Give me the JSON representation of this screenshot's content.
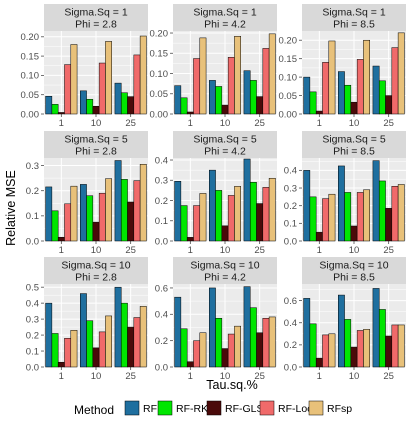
{
  "chart_data": {
    "type": "bar",
    "ylabel": "Relative MSE",
    "xlabel": "Tau.sq.%",
    "categories": [
      "1",
      "10",
      "25"
    ],
    "legend": {
      "title": "Method",
      "position": "bottom",
      "entries": [
        {
          "name": "RF",
          "color": "#1f6f9f"
        },
        {
          "name": "RF-RK",
          "color": "#00e600"
        },
        {
          "name": "RF-GLS",
          "color": "#4a0a0a"
        },
        {
          "name": "RF-Loc",
          "color": "#f06a6a"
        },
        {
          "name": "RFsp",
          "color": "#e8c17a"
        }
      ]
    },
    "grid": true,
    "panels": [
      {
        "row": 0,
        "col": 0,
        "strip1": "Sigma.Sq = 1",
        "strip2": "Phi = 2.8",
        "ylim": [
          0,
          0.215
        ],
        "yticks": [
          0.0,
          0.05,
          0.1,
          0.15,
          0.2
        ],
        "yticklabels": [
          "0.00",
          "0.05",
          "0.10",
          "0.15",
          "0.20"
        ],
        "values": [
          [
            0.046,
            0.025,
            0.004,
            0.128,
            0.18
          ],
          [
            0.06,
            0.038,
            0.02,
            0.132,
            0.188
          ],
          [
            0.08,
            0.055,
            0.045,
            0.153,
            0.202
          ]
        ]
      },
      {
        "row": 0,
        "col": 1,
        "strip1": "Sigma.Sq = 1",
        "strip2": "Phi = 4.2",
        "ylim": [
          0,
          0.205
        ],
        "yticks": [
          0.0,
          0.05,
          0.1,
          0.15,
          0.2
        ],
        "yticklabels": [
          "0.00",
          "0.05",
          "0.10",
          "0.15",
          "0.20"
        ],
        "values": [
          [
            0.07,
            0.04,
            0.005,
            0.137,
            0.188
          ],
          [
            0.083,
            0.068,
            0.022,
            0.14,
            0.192
          ],
          [
            0.107,
            0.083,
            0.043,
            0.162,
            0.198
          ]
        ]
      },
      {
        "row": 0,
        "col": 2,
        "strip1": "Sigma.Sq = 1",
        "strip2": "Phi = 8.5",
        "ylim": [
          0,
          0.225
        ],
        "yticks": [
          0.0,
          0.05,
          0.1,
          0.15,
          0.2
        ],
        "yticklabels": [
          "0.00",
          "0.05",
          "0.10",
          "0.15",
          "0.20"
        ],
        "values": [
          [
            0.1,
            0.06,
            0.008,
            0.14,
            0.198
          ],
          [
            0.115,
            0.078,
            0.032,
            0.148,
            0.2
          ],
          [
            0.13,
            0.09,
            0.05,
            0.18,
            0.22
          ]
        ]
      },
      {
        "row": 1,
        "col": 0,
        "strip1": "Sigma.Sq = 5",
        "strip2": "Phi = 2.8",
        "ylim": [
          0,
          0.33
        ],
        "yticks": [
          0.0,
          0.1,
          0.2,
          0.3
        ],
        "yticklabels": [
          "0.0",
          "0.1",
          "0.2",
          "0.3"
        ],
        "values": [
          [
            0.215,
            0.12,
            0.015,
            0.148,
            0.218
          ],
          [
            0.225,
            0.18,
            0.075,
            0.19,
            0.248
          ],
          [
            0.32,
            0.245,
            0.155,
            0.24,
            0.305
          ]
        ]
      },
      {
        "row": 1,
        "col": 1,
        "strip1": "Sigma.Sq = 5",
        "strip2": "Phi = 4.2",
        "ylim": [
          0,
          0.41
        ],
        "yticks": [
          0.0,
          0.1,
          0.2,
          0.3,
          0.4
        ],
        "yticklabels": [
          "0.0",
          "0.1",
          "0.2",
          "0.3",
          "0.4"
        ],
        "values": [
          [
            0.295,
            0.175,
            0.018,
            0.175,
            0.235
          ],
          [
            0.35,
            0.25,
            0.075,
            0.225,
            0.27
          ],
          [
            0.405,
            0.29,
            0.185,
            0.265,
            0.31
          ]
        ]
      },
      {
        "row": 1,
        "col": 2,
        "strip1": "Sigma.Sq = 5",
        "strip2": "Phi = 8.5",
        "ylim": [
          0,
          0.47
        ],
        "yticks": [
          0.0,
          0.1,
          0.2,
          0.3,
          0.4
        ],
        "yticklabels": [
          "0.0",
          "0.1",
          "0.2",
          "0.3",
          "0.4"
        ],
        "values": [
          [
            0.4,
            0.25,
            0.05,
            0.24,
            0.265
          ],
          [
            0.425,
            0.275,
            0.085,
            0.275,
            0.29
          ],
          [
            0.455,
            0.34,
            0.185,
            0.31,
            0.32
          ]
        ]
      },
      {
        "row": 2,
        "col": 0,
        "strip1": "Sigma.Sq = 10",
        "strip2": "Phi = 2.8",
        "ylim": [
          0,
          0.52
        ],
        "yticks": [
          0.0,
          0.1,
          0.2,
          0.3,
          0.4,
          0.5
        ],
        "yticklabels": [
          "0.0",
          "0.1",
          "0.2",
          "0.3",
          "0.4",
          "0.5"
        ],
        "values": [
          [
            0.4,
            0.21,
            0.03,
            0.18,
            0.23
          ],
          [
            0.46,
            0.29,
            0.12,
            0.22,
            0.32
          ],
          [
            0.5,
            0.4,
            0.25,
            0.31,
            0.38
          ]
        ]
      },
      {
        "row": 2,
        "col": 1,
        "strip1": "Sigma.Sq = 10",
        "strip2": "Phi = 4.2",
        "ylim": [
          0,
          0.63
        ],
        "yticks": [
          0.0,
          0.2,
          0.4,
          0.6
        ],
        "yticklabels": [
          "0.0",
          "0.2",
          "0.4",
          "0.6"
        ],
        "values": [
          [
            0.53,
            0.29,
            0.04,
            0.2,
            0.26
          ],
          [
            0.6,
            0.37,
            0.14,
            0.25,
            0.31
          ],
          [
            0.61,
            0.45,
            0.26,
            0.37,
            0.38
          ]
        ]
      },
      {
        "row": 2,
        "col": 2,
        "strip1": "Sigma.Sq = 10",
        "strip2": "Phi = 8.5",
        "ylim": [
          0,
          0.75
        ],
        "yticks": [
          0.0,
          0.2,
          0.4,
          0.6
        ],
        "yticklabels": [
          "0.0",
          "0.2",
          "0.4",
          "0.6"
        ],
        "values": [
          [
            0.62,
            0.39,
            0.08,
            0.29,
            0.3
          ],
          [
            0.65,
            0.43,
            0.18,
            0.33,
            0.34
          ],
          [
            0.71,
            0.52,
            0.28,
            0.38,
            0.38
          ]
        ]
      }
    ]
  }
}
